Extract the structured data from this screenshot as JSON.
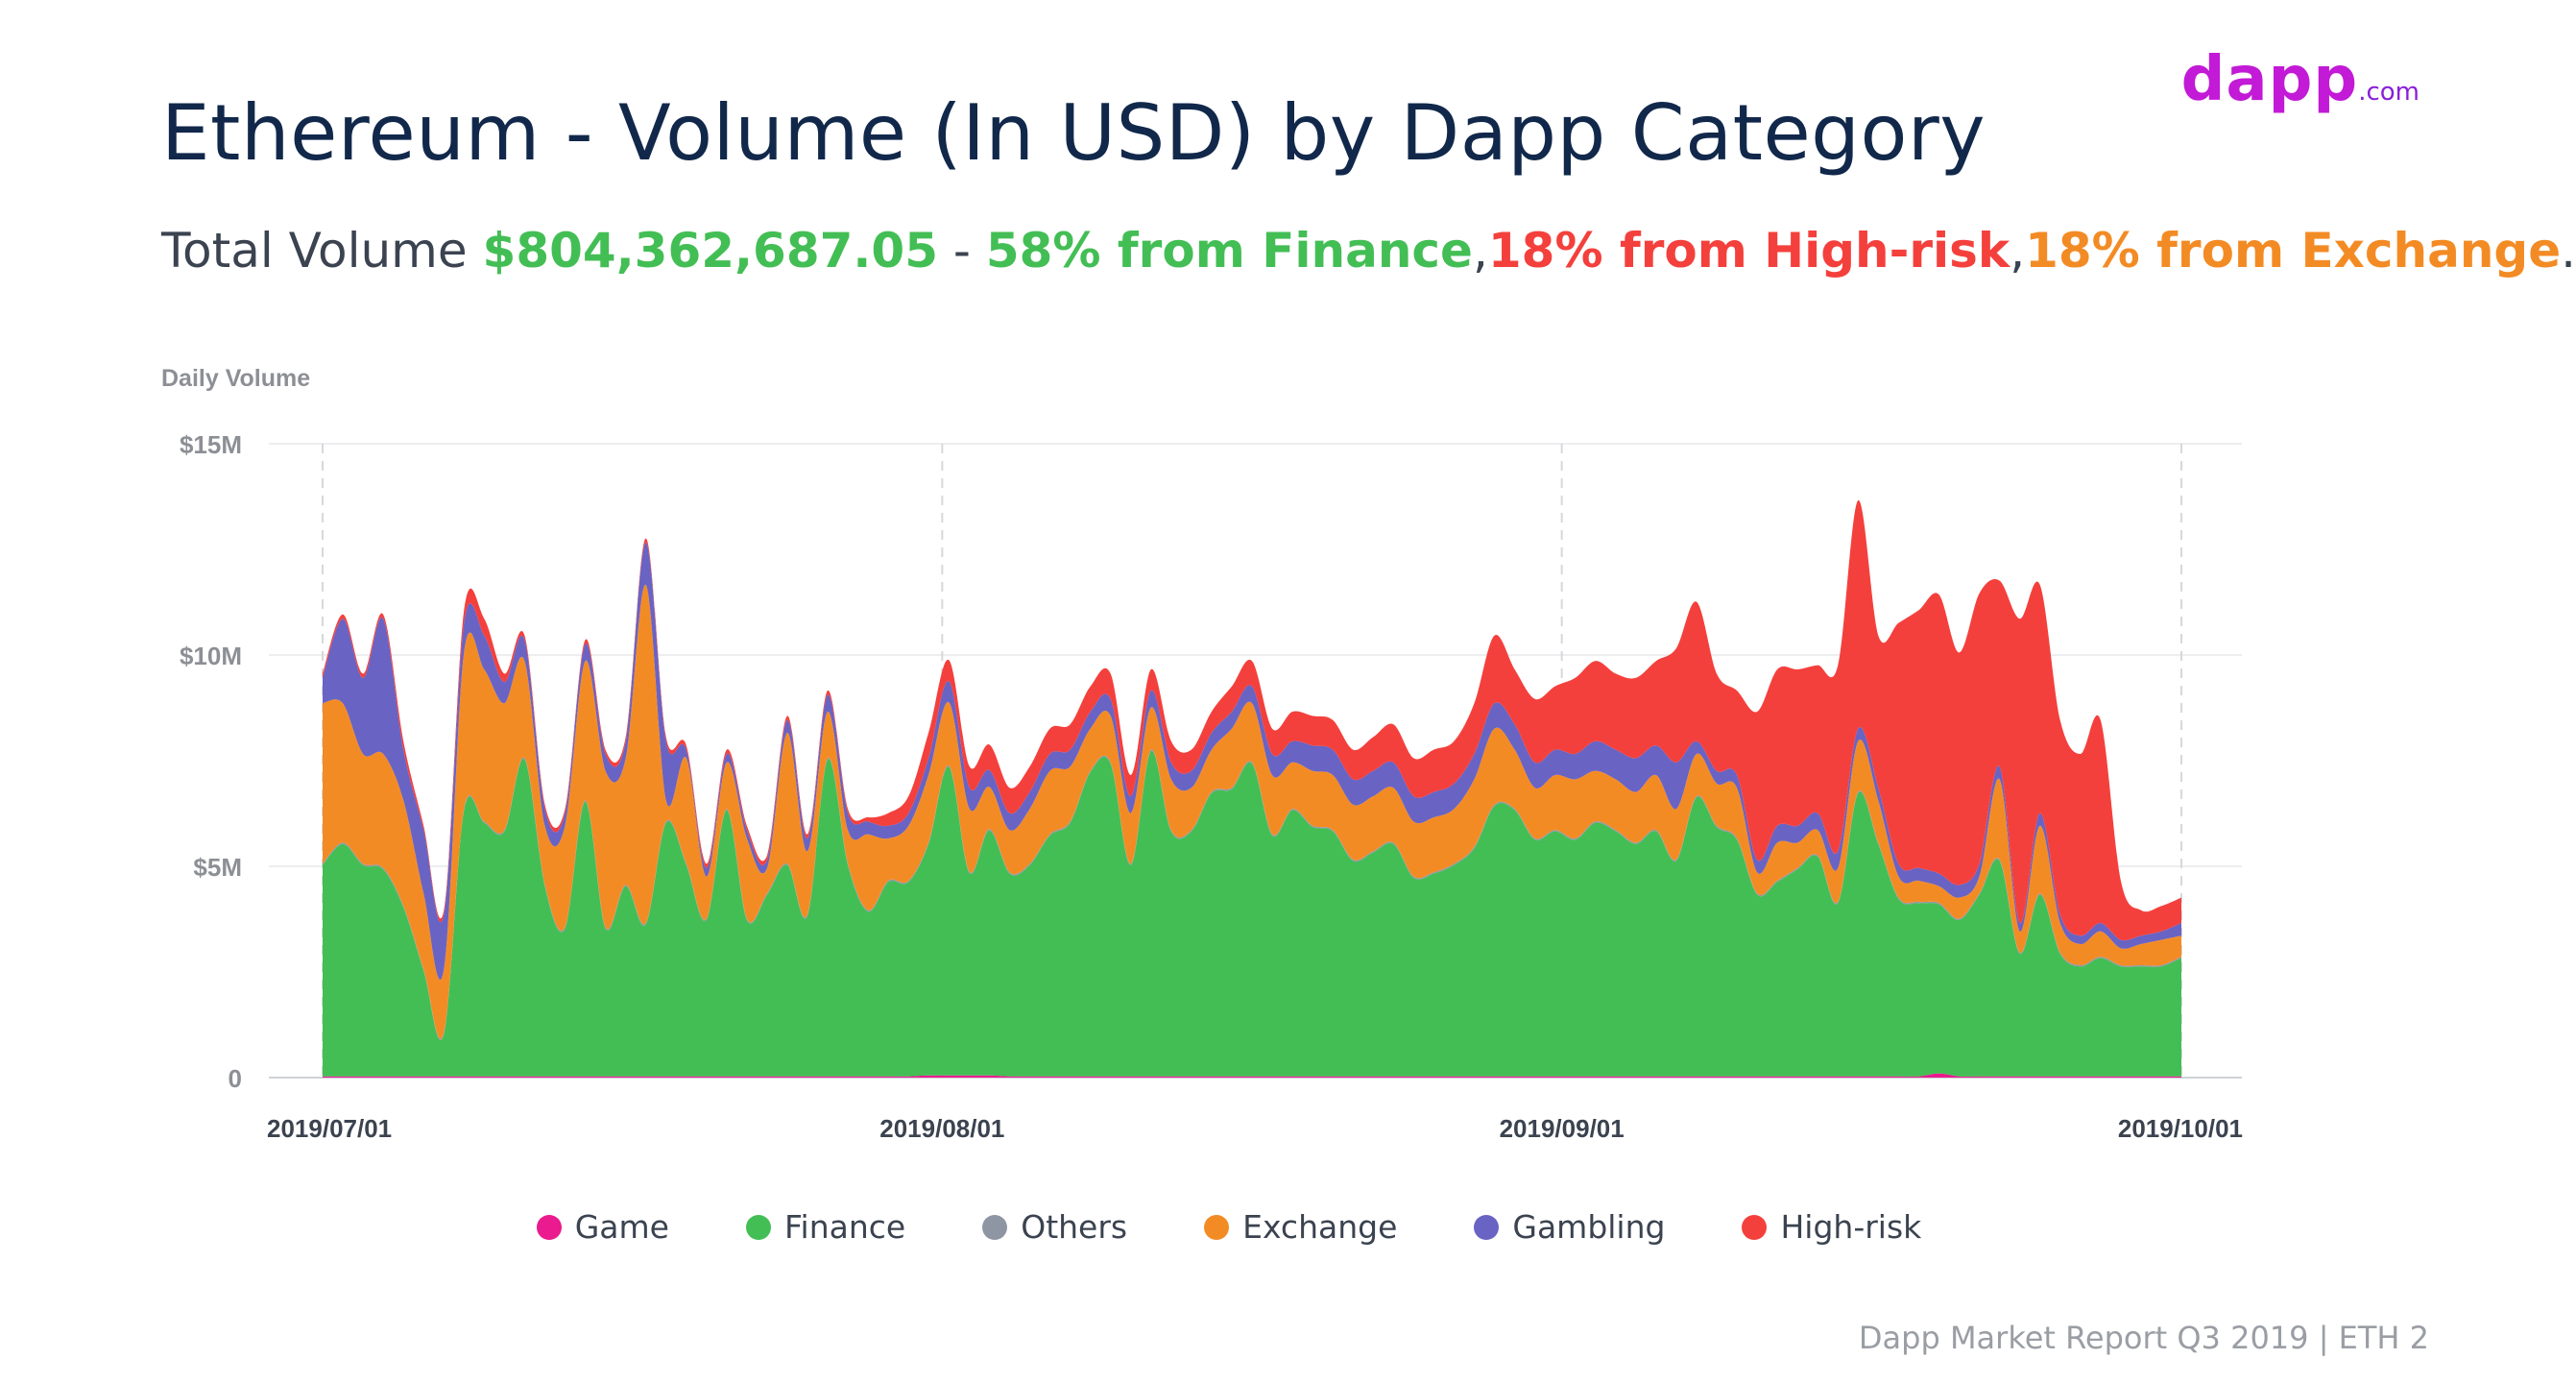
{
  "header": {
    "title": "Ethereum - Volume (In USD) by Dapp Category",
    "total_label": "Total Volume ",
    "total_value": "$804,362,687.05",
    "sep_dash": " - ",
    "finance_share": "58% from Finance",
    "comma1": ",",
    "highrisk_share": "18% from High-risk",
    "comma2": ",",
    "exchange_share": "18% from Exchange",
    "period": "."
  },
  "logo": {
    "main": "dapp",
    "suffix": ".com"
  },
  "footer": {
    "text": "Dapp Market Report Q3 2019 | ETH 2"
  },
  "colors": {
    "title": "#11284b",
    "total_value": "#43be55",
    "finance": "#43be55",
    "highrisk": "#f4403c",
    "exchange": "#f38b25",
    "logo": "#c21ad6"
  },
  "chart_data": {
    "type": "area",
    "stacked": true,
    "ylabel": "Daily Volume",
    "y_ticks": [
      "0",
      "$5M",
      "$10M",
      "$15M"
    ],
    "ylim": [
      0,
      15
    ],
    "y_unit": "USD millions",
    "x_ticks": [
      "2019/07/01",
      "2019/08/01",
      "2019/09/01",
      "2019/10/01"
    ],
    "x_range_days": [
      0,
      92
    ],
    "grid": true,
    "legend_position": "bottom",
    "x": [
      0,
      1,
      2,
      3,
      4,
      5,
      6,
      7,
      8,
      9,
      10,
      11,
      12,
      13,
      14,
      15,
      16,
      17,
      18,
      19,
      20,
      21,
      22,
      23,
      24,
      25,
      26,
      27,
      28,
      29,
      30,
      31,
      32,
      33,
      34,
      35,
      36,
      37,
      38,
      39,
      40,
      41,
      42,
      43,
      44,
      45,
      46,
      47,
      48,
      49,
      50,
      51,
      52,
      53,
      54,
      55,
      56,
      57,
      58,
      59,
      60,
      61,
      62,
      63,
      64,
      65,
      66,
      67,
      68,
      69,
      70,
      71,
      72,
      73,
      74,
      75,
      76,
      77,
      78,
      79,
      80,
      81,
      82,
      83,
      84,
      85,
      86,
      87,
      88,
      89,
      90,
      91,
      92
    ],
    "series": [
      {
        "name": "Game",
        "color": "#ea1a8f",
        "values": [
          0.03,
          0.03,
          0.03,
          0.03,
          0.03,
          0.03,
          0.03,
          0.03,
          0.03,
          0.03,
          0.03,
          0.03,
          0.03,
          0.03,
          0.03,
          0.03,
          0.03,
          0.03,
          0.03,
          0.03,
          0.03,
          0.03,
          0.03,
          0.03,
          0.03,
          0.03,
          0.03,
          0.03,
          0.03,
          0.03,
          0.05,
          0.05,
          0.05,
          0.05,
          0.03,
          0.03,
          0.03,
          0.03,
          0.03,
          0.03,
          0.03,
          0.03,
          0.03,
          0.03,
          0.03,
          0.03,
          0.03,
          0.03,
          0.03,
          0.03,
          0.03,
          0.03,
          0.03,
          0.03,
          0.03,
          0.03,
          0.03,
          0.03,
          0.03,
          0.03,
          0.03,
          0.03,
          0.03,
          0.03,
          0.03,
          0.03,
          0.03,
          0.03,
          0.03,
          0.03,
          0.03,
          0.03,
          0.03,
          0.03,
          0.03,
          0.03,
          0.03,
          0.03,
          0.03,
          0.03,
          0.1,
          0.03,
          0.03,
          0.03,
          0.03,
          0.03,
          0.03,
          0.03,
          0.03,
          0.03,
          0.03,
          0.03,
          0.03
        ]
      },
      {
        "name": "Finance",
        "color": "#43be55",
        "values": [
          5.0,
          5.5,
          5.0,
          4.9,
          4.0,
          2.5,
          1.0,
          6.3,
          6.0,
          5.8,
          7.5,
          4.5,
          3.5,
          6.5,
          3.5,
          4.5,
          3.6,
          6.0,
          5.0,
          3.7,
          6.3,
          3.7,
          4.3,
          5.0,
          3.8,
          7.5,
          5.0,
          3.9,
          4.6,
          4.6,
          5.5,
          7.3,
          4.8,
          5.8,
          4.8,
          5.0,
          5.7,
          6.0,
          7.2,
          7.4,
          5.0,
          7.7,
          5.8,
          5.8,
          6.7,
          6.8,
          7.4,
          5.7,
          6.3,
          5.9,
          5.8,
          5.1,
          5.3,
          5.5,
          4.7,
          4.8,
          5.0,
          5.4,
          6.4,
          6.3,
          5.6,
          5.8,
          5.6,
          6.0,
          5.8,
          5.5,
          5.8,
          5.1,
          6.6,
          5.9,
          5.6,
          4.3,
          4.6,
          4.9,
          5.2,
          4.1,
          6.7,
          5.5,
          4.2,
          4.1,
          4.0,
          3.7,
          4.3,
          5.1,
          2.9,
          4.3,
          2.9,
          2.6,
          2.8,
          2.6,
          2.6,
          2.6,
          2.8
        ]
      },
      {
        "name": "Others",
        "color": "#8f96a3",
        "values": [
          0.03,
          0.03,
          0.03,
          0.03,
          0.03,
          0.03,
          0.03,
          0.03,
          0.03,
          0.03,
          0.03,
          0.03,
          0.03,
          0.03,
          0.03,
          0.03,
          0.03,
          0.03,
          0.03,
          0.03,
          0.03,
          0.03,
          0.03,
          0.03,
          0.03,
          0.03,
          0.03,
          0.03,
          0.03,
          0.03,
          0.03,
          0.03,
          0.03,
          0.03,
          0.03,
          0.03,
          0.03,
          0.03,
          0.03,
          0.03,
          0.03,
          0.03,
          0.03,
          0.03,
          0.03,
          0.03,
          0.03,
          0.03,
          0.03,
          0.03,
          0.03,
          0.03,
          0.03,
          0.03,
          0.03,
          0.03,
          0.03,
          0.03,
          0.03,
          0.03,
          0.03,
          0.03,
          0.03,
          0.03,
          0.03,
          0.03,
          0.03,
          0.03,
          0.03,
          0.03,
          0.03,
          0.03,
          0.03,
          0.03,
          0.03,
          0.03,
          0.03,
          0.03,
          0.03,
          0.03,
          0.03,
          0.03,
          0.03,
          0.03,
          0.03,
          0.03,
          0.03,
          0.03,
          0.03,
          0.03,
          0.03,
          0.03,
          0.03
        ]
      },
      {
        "name": "Exchange",
        "color": "#f38b25",
        "values": [
          3.8,
          3.3,
          2.6,
          2.7,
          2.5,
          1.8,
          1.5,
          3.7,
          3.6,
          3.0,
          2.3,
          1.4,
          2.4,
          3.3,
          3.7,
          3.0,
          8.0,
          0.5,
          2.5,
          1.0,
          1.1,
          1.9,
          0.6,
          3.1,
          1.5,
          1.1,
          0.8,
          1.8,
          1.0,
          1.3,
          1.6,
          1.5,
          1.5,
          1.0,
          1.0,
          1.3,
          1.5,
          1.3,
          1.0,
          1.1,
          1.2,
          1.0,
          1.2,
          1.0,
          1.0,
          1.4,
          1.4,
          1.4,
          1.1,
          1.3,
          1.3,
          1.3,
          1.3,
          1.3,
          1.3,
          1.3,
          1.3,
          1.6,
          1.8,
          1.4,
          1.2,
          1.3,
          1.4,
          1.2,
          1.2,
          1.2,
          1.3,
          1.2,
          1.0,
          1.0,
          1.2,
          0.5,
          0.9,
          0.6,
          0.6,
          0.8,
          1.2,
          1.0,
          0.5,
          0.5,
          0.4,
          0.5,
          0.4,
          1.9,
          0.5,
          1.6,
          0.7,
          0.5,
          0.6,
          0.4,
          0.5,
          0.6,
          0.5
        ]
      },
      {
        "name": "Gambling",
        "color": "#6963c4",
        "values": [
          0.6,
          2.0,
          1.8,
          3.2,
          1.2,
          1.5,
          1.3,
          0.7,
          0.8,
          0.5,
          0.5,
          0.4,
          0.3,
          0.4,
          0.4,
          0.4,
          1.0,
          1.4,
          0.2,
          0.2,
          0.2,
          0.2,
          0.2,
          0.3,
          0.3,
          0.4,
          0.4,
          0.3,
          0.3,
          0.3,
          0.4,
          0.5,
          0.5,
          0.4,
          0.4,
          0.4,
          0.4,
          0.4,
          0.4,
          0.4,
          0.4,
          0.4,
          0.4,
          0.4,
          0.4,
          0.4,
          0.4,
          0.5,
          0.5,
          0.6,
          0.6,
          0.6,
          0.6,
          0.6,
          0.6,
          0.6,
          0.6,
          0.6,
          0.6,
          0.6,
          0.6,
          0.6,
          0.6,
          0.7,
          0.7,
          0.8,
          0.7,
          1.1,
          0.3,
          0.3,
          0.3,
          0.3,
          0.4,
          0.4,
          0.4,
          0.4,
          0.3,
          0.3,
          0.3,
          0.3,
          0.3,
          0.3,
          0.3,
          0.3,
          0.2,
          0.3,
          0.2,
          0.2,
          0.2,
          0.2,
          0.2,
          0.2,
          0.3
        ]
      },
      {
        "name": "High-risk",
        "color": "#f4403c",
        "values": [
          0.1,
          0.1,
          0.1,
          0.1,
          0.2,
          0.1,
          0.1,
          0.3,
          0.4,
          0.2,
          0.1,
          0.1,
          0.1,
          0.1,
          0.1,
          0.1,
          0.1,
          0.1,
          0.1,
          0.1,
          0.1,
          0.1,
          0.1,
          0.1,
          0.1,
          0.1,
          0.1,
          0.1,
          0.3,
          0.4,
          0.6,
          0.5,
          0.5,
          0.6,
          0.6,
          0.6,
          0.6,
          0.6,
          0.6,
          0.6,
          0.5,
          0.5,
          0.5,
          0.5,
          0.5,
          0.6,
          0.6,
          0.6,
          0.7,
          0.7,
          0.7,
          0.7,
          0.8,
          0.9,
          0.9,
          1.0,
          1.0,
          1.2,
          1.6,
          1.3,
          1.5,
          1.5,
          1.8,
          1.9,
          1.8,
          1.9,
          2.0,
          2.7,
          3.3,
          2.3,
          2.0,
          3.5,
          3.7,
          3.7,
          3.5,
          4.4,
          5.4,
          3.6,
          5.7,
          6.1,
          6.6,
          5.5,
          6.4,
          4.4,
          7.2,
          5.4,
          4.6,
          4.3,
          4.8,
          1.4,
          0.6,
          0.6,
          0.6
        ]
      }
    ]
  }
}
